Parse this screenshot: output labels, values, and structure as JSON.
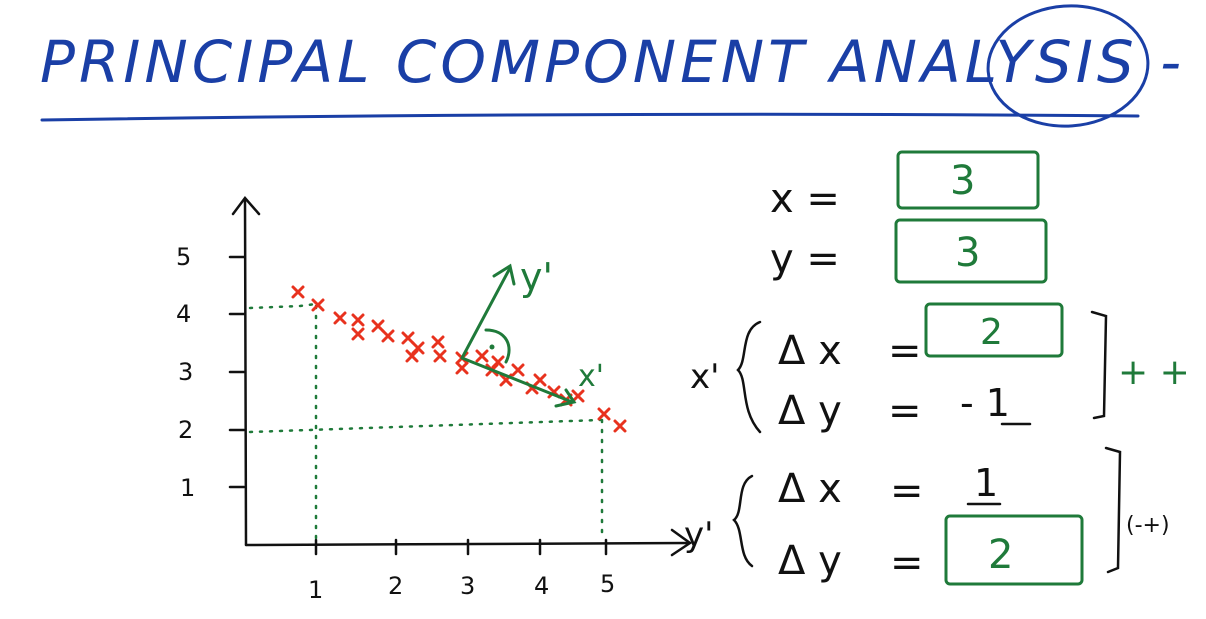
{
  "title": "PRINCIPAL COMPONENT ANALYSIS - PCA",
  "axis": {
    "y_ticks": [
      "5",
      "4",
      "3",
      "2",
      "1"
    ],
    "x_ticks": [
      "1",
      "2",
      "3",
      "4",
      "5"
    ]
  },
  "vectors": {
    "y_prime_label": "y'",
    "x_prime_label": "x'"
  },
  "equations": {
    "x_label": "x =",
    "x_value": "3",
    "y_label": "y =",
    "y_value": "3",
    "x_prime_prefix": "x'",
    "dx_label": "Δ x",
    "dx_eq": "=",
    "dx_xprime_value": "2",
    "dy_label": "Δ y",
    "dy_eq": "=",
    "dy_xprime_value": "- 1",
    "x_prime_note": "+ +",
    "y_prime_prefix": "y'",
    "dx_yprime_value": "1",
    "dy_yprime_value": "2",
    "y_prime_note": "(-+)"
  },
  "colors": {
    "title_ink": "#1a3fa6",
    "axis_ink": "#111111",
    "data_points": "#e8321e",
    "vector_ink": "#1f7a3a"
  }
}
